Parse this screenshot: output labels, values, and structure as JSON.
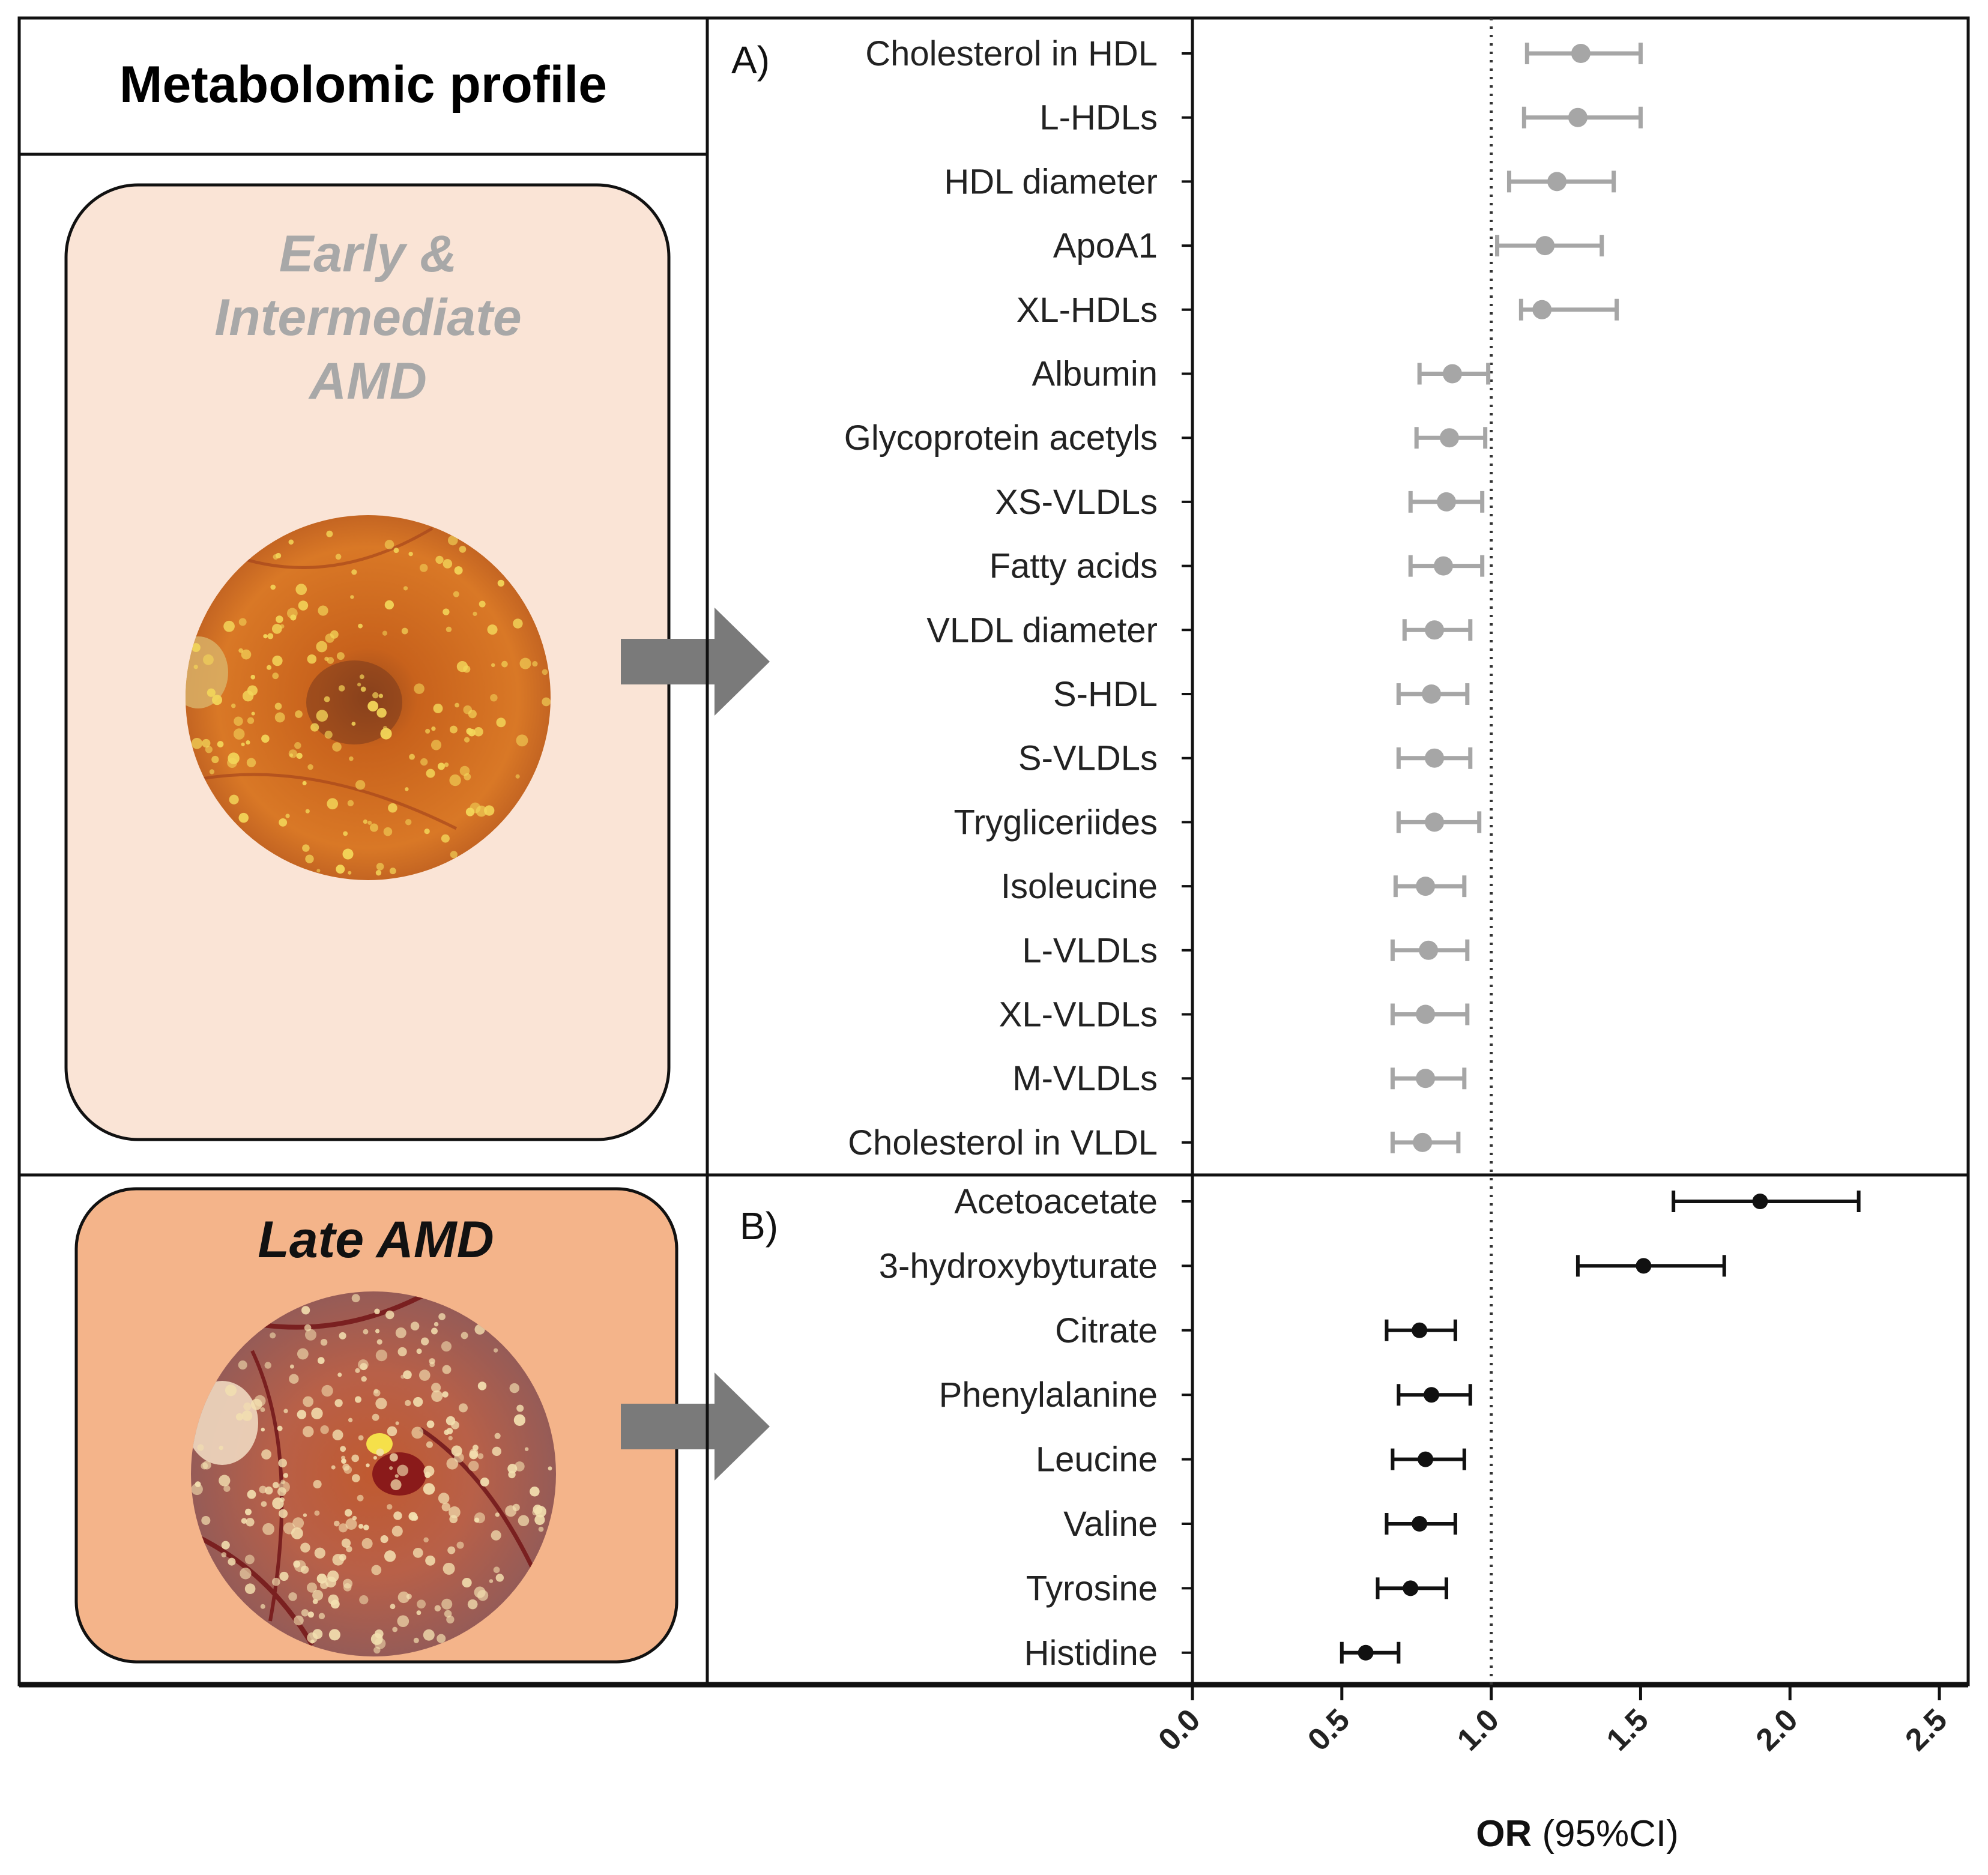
{
  "figure": {
    "title": "Metabolomic profile",
    "early_box": {
      "line1": "Early &",
      "line2": "Intermediate",
      "line3": "AMD"
    },
    "late_box": {
      "label": "Late AMD"
    },
    "colors": {
      "early_box_fill": "#fae4d6",
      "late_box_fill": "#f4b48a",
      "early_text": "#a8a8a8",
      "panel_a_marker": "#a6a6a6",
      "panel_b_marker": "#111111",
      "arrow": "#7a7a7a"
    }
  },
  "chart_data": {
    "type": "forest",
    "xlabel_bold": "OR",
    "xlabel_rest": " (95%CI)",
    "xlim": [
      0,
      2.5
    ],
    "xticks": [
      "0.0",
      "0.5",
      "1.0",
      "1.5",
      "2.0",
      "2.5"
    ],
    "reference_line": 1.0,
    "panels": [
      {
        "tag": "A)",
        "items": [
          {
            "label": "Cholesterol in HDL",
            "or": 1.3,
            "lo": 1.12,
            "hi": 1.5
          },
          {
            "label": "L-HDLs",
            "or": 1.29,
            "lo": 1.11,
            "hi": 1.5
          },
          {
            "label": "HDL diameter",
            "or": 1.22,
            "lo": 1.06,
            "hi": 1.41
          },
          {
            "label": "ApoA1",
            "or": 1.18,
            "lo": 1.02,
            "hi": 1.37
          },
          {
            "label": "XL-HDLs",
            "or": 1.17,
            "lo": 1.1,
            "hi": 1.42
          },
          {
            "label": "Albumin",
            "or": 0.87,
            "lo": 0.76,
            "hi": 0.99
          },
          {
            "label": "Glycoprotein acetyls",
            "or": 0.86,
            "lo": 0.75,
            "hi": 0.98
          },
          {
            "label": "XS-VLDLs",
            "or": 0.85,
            "lo": 0.73,
            "hi": 0.97
          },
          {
            "label": "Fatty acids",
            "or": 0.84,
            "lo": 0.73,
            "hi": 0.97
          },
          {
            "label": "VLDL diameter",
            "or": 0.81,
            "lo": 0.71,
            "hi": 0.93
          },
          {
            "label": "S-HDL",
            "or": 0.8,
            "lo": 0.69,
            "hi": 0.92
          },
          {
            "label": "S-VLDLs",
            "or": 0.81,
            "lo": 0.69,
            "hi": 0.93
          },
          {
            "label": "Trygliceriides",
            "or": 0.81,
            "lo": 0.69,
            "hi": 0.96
          },
          {
            "label": "Isoleucine",
            "or": 0.78,
            "lo": 0.68,
            "hi": 0.91
          },
          {
            "label": "L-VLDLs",
            "or": 0.79,
            "lo": 0.67,
            "hi": 0.92
          },
          {
            "label": "XL-VLDLs",
            "or": 0.78,
            "lo": 0.67,
            "hi": 0.92
          },
          {
            "label": "M-VLDLs",
            "or": 0.78,
            "lo": 0.67,
            "hi": 0.91
          },
          {
            "label": "Cholesterol in VLDL",
            "or": 0.77,
            "lo": 0.67,
            "hi": 0.89
          }
        ]
      },
      {
        "tag": "B)",
        "items": [
          {
            "label": "Acetoacetate",
            "or": 1.9,
            "lo": 1.61,
            "hi": 2.23
          },
          {
            "label": "3-hydroxybyturate",
            "or": 1.51,
            "lo": 1.29,
            "hi": 1.78
          },
          {
            "label": "Citrate",
            "or": 0.76,
            "lo": 0.65,
            "hi": 0.88
          },
          {
            "label": "Phenylalanine",
            "or": 0.8,
            "lo": 0.69,
            "hi": 0.93
          },
          {
            "label": "Leucine",
            "or": 0.78,
            "lo": 0.67,
            "hi": 0.91
          },
          {
            "label": "Valine",
            "or": 0.76,
            "lo": 0.65,
            "hi": 0.88
          },
          {
            "label": "Tyrosine",
            "or": 0.73,
            "lo": 0.62,
            "hi": 0.85
          },
          {
            "label": "Histidine",
            "or": 0.58,
            "lo": 0.5,
            "hi": 0.69
          }
        ]
      }
    ]
  }
}
